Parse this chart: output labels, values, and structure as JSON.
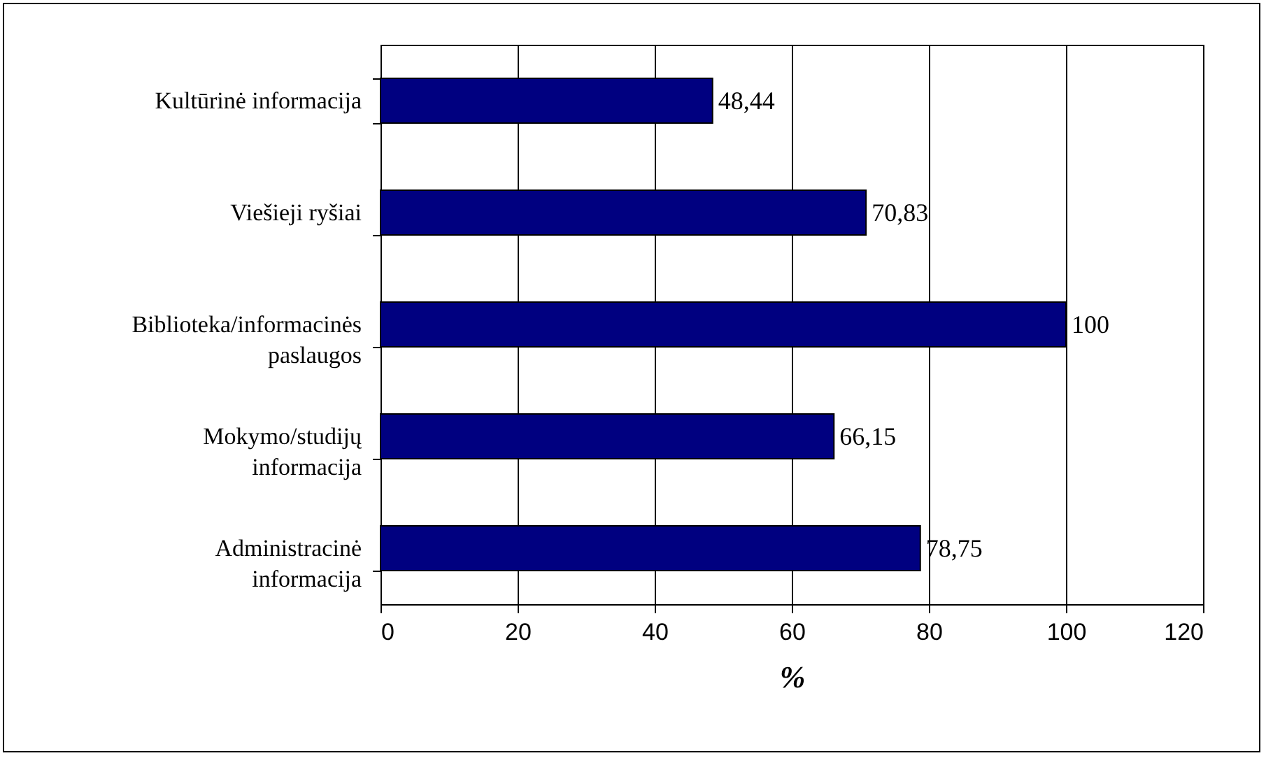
{
  "chart_data": {
    "type": "bar",
    "orientation": "horizontal",
    "xlabel": "%",
    "categories": [
      "Kultūrinė informacija",
      "Viešieji ryšiai",
      "Biblioteka/informacinės paslaugos",
      "Mokymo/studijų informacija",
      "Administracinė informacija"
    ],
    "values": [
      48.44,
      70.83,
      100,
      66.15,
      78.75
    ],
    "value_labels": [
      "48,44",
      "70,83",
      "100",
      "66,15",
      "78,75"
    ],
    "color": "#000080",
    "xlim": [
      0,
      120
    ],
    "xticks": [
      0,
      20,
      40,
      60,
      80,
      100,
      120
    ],
    "grid": "x"
  }
}
